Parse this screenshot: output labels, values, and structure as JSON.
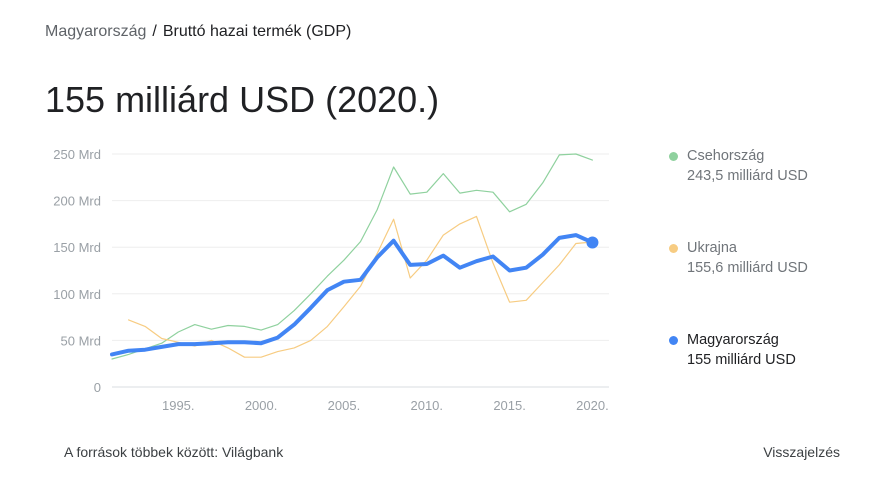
{
  "breadcrumb": {
    "parent": "Magyarország",
    "separator": "/",
    "current": "Bruttó hazai termék (GDP)"
  },
  "headline": "155 milliárd USD (2020.)",
  "legend": [
    {
      "name": "Csehország",
      "value": "243,5 milliárd USD",
      "color": "#8fd19e"
    },
    {
      "name": "Ukrajna",
      "value": "155,6 milliárd USD",
      "color": "#f7cc82"
    },
    {
      "name": "Magyarország",
      "value": "155 milliárd USD",
      "color": "#4285f4"
    }
  ],
  "footer": {
    "source": "A források többek között: Világbank",
    "feedback": "Visszajelzés"
  },
  "chart_data": {
    "type": "line",
    "title": "",
    "xlabel": "",
    "ylabel": "",
    "x": [
      1991,
      1992,
      1993,
      1994,
      1995,
      1996,
      1997,
      1998,
      1999,
      2000,
      2001,
      2002,
      2003,
      2004,
      2005,
      2006,
      2007,
      2008,
      2009,
      2010,
      2011,
      2012,
      2013,
      2014,
      2015,
      2016,
      2017,
      2018,
      2019,
      2020
    ],
    "xticks": [
      1995,
      2000,
      2005,
      2010,
      2015,
      2020
    ],
    "xtick_labels": [
      "1995.",
      "2000.",
      "2005.",
      "2010.",
      "2015.",
      "2020."
    ],
    "ylim": [
      0,
      250
    ],
    "yticks": [
      0,
      50,
      100,
      150,
      200,
      250
    ],
    "ytick_labels": [
      "0",
      "50 Mrd",
      "100 Mrd",
      "150 Mrd",
      "200 Mrd",
      "250 Mrd"
    ],
    "grid": true,
    "legend_position": "right",
    "series": [
      {
        "name": "Csehország",
        "color": "#8fd19e",
        "values": [
          30,
          35,
          41,
          47,
          59,
          67,
          62,
          66,
          65,
          61,
          67,
          82,
          100,
          119,
          136,
          156,
          190,
          236,
          207,
          209,
          229,
          208,
          211,
          209,
          188,
          196,
          219,
          249,
          250,
          243.5
        ]
      },
      {
        "name": "Ukrajna",
        "color": "#f7cc82",
        "values": [
          null,
          72,
          65,
          52,
          48,
          44,
          50,
          42,
          32,
          32,
          38,
          42,
          50,
          65,
          86,
          108,
          143,
          180,
          117,
          136,
          163,
          175,
          183,
          133,
          91,
          93,
          112,
          131,
          154,
          155.6
        ]
      },
      {
        "name": "Magyarország",
        "color": "#4285f4",
        "values": [
          35,
          39,
          40,
          43,
          46,
          46,
          47,
          48,
          48,
          47,
          53,
          67,
          85,
          104,
          113,
          115,
          139,
          157,
          131,
          132,
          141,
          128,
          135,
          140,
          125,
          128,
          142,
          160,
          163,
          155
        ]
      }
    ]
  }
}
